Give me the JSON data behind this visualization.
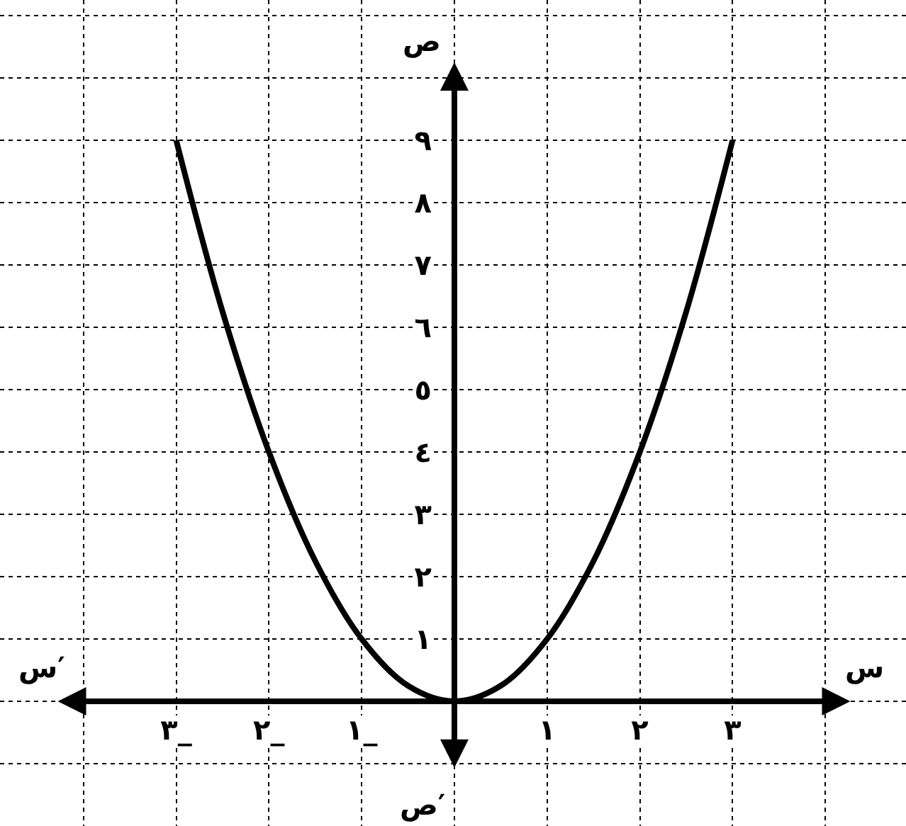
{
  "chart_data": {
    "type": "line",
    "xlabel": "س",
    "ylabel": "ص",
    "annotations": [
      "س′",
      "ص′"
    ],
    "x": [
      -3,
      -2.5,
      -2,
      -1.5,
      -1,
      -0.5,
      0,
      0.5,
      1,
      1.5,
      2,
      2.5,
      3
    ],
    "series": [
      {
        "color": "#000000",
        "values": [
          9,
          6.25,
          4,
          2.25,
          1,
          0.25,
          0,
          0.25,
          1,
          2.25,
          4,
          6.25,
          9
        ]
      }
    ],
    "xlim": [
      -4.9,
      4.87
    ],
    "ylim": [
      -2,
      11.25
    ],
    "xticks": [
      {
        "value": -4,
        "label": null
      },
      {
        "value": -3,
        "label": "٣_"
      },
      {
        "value": -2,
        "label": "٢_"
      },
      {
        "value": -1,
        "label": "١_"
      },
      {
        "value": 0,
        "label": null
      },
      {
        "value": 1,
        "label": "١"
      },
      {
        "value": 2,
        "label": "٢"
      },
      {
        "value": 3,
        "label": "٣"
      },
      {
        "value": 4,
        "label": null
      }
    ],
    "yticks": [
      {
        "value": -1,
        "label": null
      },
      {
        "value": 0,
        "label": null
      },
      {
        "value": 1,
        "label": "١"
      },
      {
        "value": 2,
        "label": "٢"
      },
      {
        "value": 3,
        "label": "٣"
      },
      {
        "value": 4,
        "label": "٤"
      },
      {
        "value": 5,
        "label": "٥"
      },
      {
        "value": 6,
        "label": "٦"
      },
      {
        "value": 7,
        "label": "٧"
      },
      {
        "value": 8,
        "label": "٨"
      },
      {
        "value": 9,
        "label": "٩"
      },
      {
        "value": 10,
        "label": null
      },
      {
        "value": 11,
        "label": null
      }
    ],
    "grid": true,
    "marker": "none",
    "line_style": "solid"
  }
}
